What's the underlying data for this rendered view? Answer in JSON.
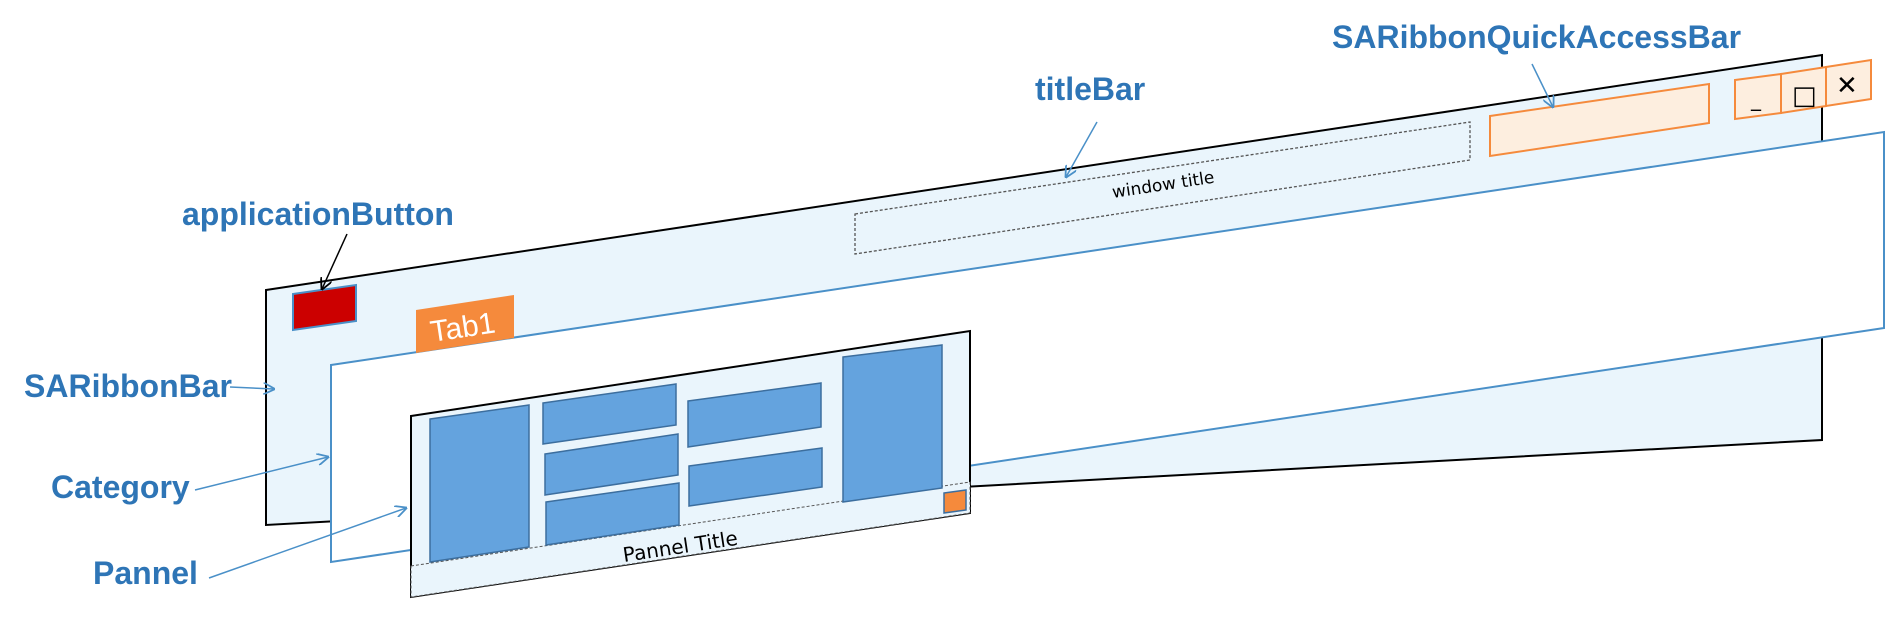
{
  "labels": {
    "quick_access_bar": "SARibbonQuickAccessBar",
    "title_bar": "titleBar",
    "application_button": "applicationButton",
    "ribbon_bar": "SARibbonBar",
    "category": "Category",
    "pannel": "Pannel"
  },
  "window": {
    "title": "window title",
    "tab_label": "Tab1",
    "pannel_title": "Pannel Title",
    "minimize_glyph": "_",
    "maximize_glyph": "□",
    "close_glyph": "✕"
  },
  "colors": {
    "label": "#2E75B6",
    "ribbon_fill": "#EAF5FC",
    "accent_orange": "#F58A3C",
    "quick_access_fill": "#FDEEDF",
    "app_button": "#CC0000",
    "block_fill": "#64A3DE",
    "block_stroke": "#3C6E9E",
    "leader_line": "#4A90C8"
  }
}
